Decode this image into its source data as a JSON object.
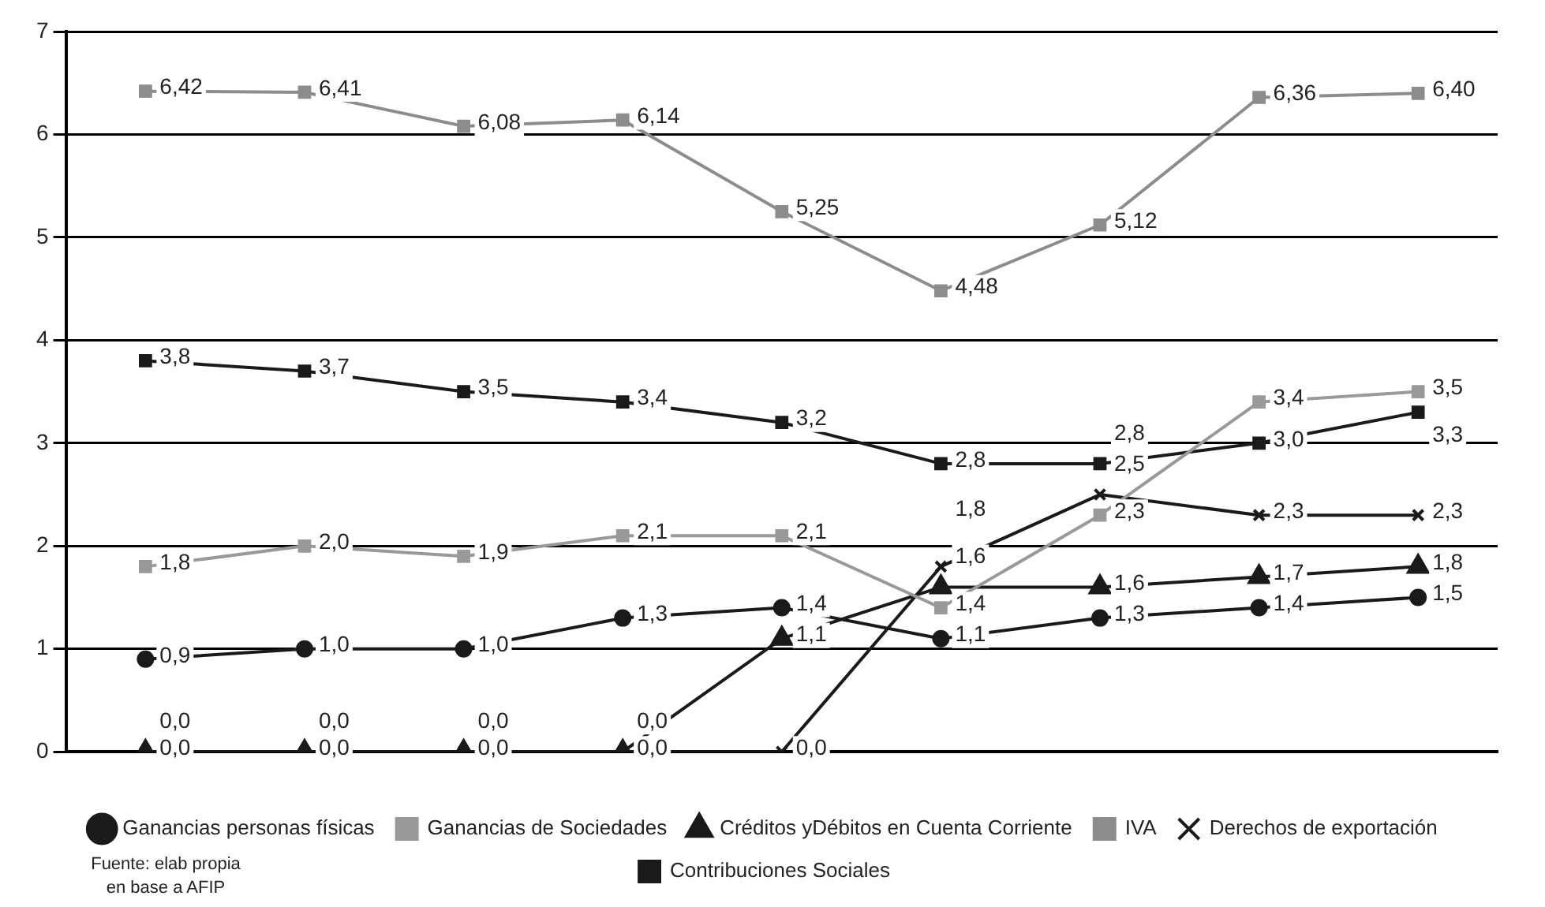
{
  "chart_data": {
    "type": "line",
    "categories": [
      null,
      null,
      null,
      null,
      null,
      null,
      null,
      null,
      null
    ],
    "series": [
      {
        "name": "Ganancias personas físicas",
        "color": "#1a1a1a",
        "marker": "circle",
        "values": [
          0.9,
          1.0,
          1.0,
          1.3,
          1.4,
          1.1,
          1.3,
          1.4,
          1.5
        ],
        "value_labels": [
          "0,9",
          "1,0",
          "1,0",
          "1,3",
          "1,4",
          "1,1",
          "1,3",
          "1,4",
          "1,5"
        ]
      },
      {
        "name": "Ganancias de Sociedades",
        "color": "#999999",
        "marker": "square",
        "values": [
          1.8,
          2.0,
          1.9,
          2.1,
          2.1,
          1.4,
          2.3,
          3.4,
          3.5
        ],
        "value_labels": [
          "1,8",
          "2,0",
          "1,9",
          "2,1",
          "2,1",
          "1,4",
          "2,3",
          "3,4",
          "3,5"
        ]
      },
      {
        "name": "Créditos yDébitos en Cuenta Corriente",
        "color": "#1a1a1a",
        "marker": "triangle",
        "values": [
          0.0,
          0.0,
          0.0,
          0.0,
          1.1,
          1.6,
          1.6,
          1.7,
          1.8
        ],
        "value_labels": [
          "0,0",
          "0,0",
          "0,0",
          "0,0",
          "1,1",
          "1,6",
          "1,6",
          "1,7",
          "1,8"
        ]
      },
      {
        "name": "IVA",
        "color": "#8c8c8c",
        "marker": "square",
        "values": [
          6.42,
          6.41,
          6.08,
          6.14,
          5.25,
          4.48,
          5.12,
          6.36,
          6.4
        ],
        "value_labels": [
          "6,42",
          "6,41",
          "6,08",
          "6,14",
          "5,25",
          "4,48",
          "5,12",
          "6,36",
          "6,40"
        ]
      },
      {
        "name": "Derechos de exportación",
        "color": "#1a1a1a",
        "marker": "cross",
        "values": [
          0.0,
          0.0,
          0.0,
          0.0,
          0.0,
          1.8,
          2.5,
          2.3,
          2.3
        ],
        "value_labels": [
          "0,0",
          "0,0",
          "0,0",
          "0,0",
          "0,0",
          "1,8",
          "2,5",
          "2,3",
          "2,3"
        ]
      },
      {
        "name": "Contribuciones Sociales",
        "color": "#1a1a1a",
        "marker": "square",
        "values": [
          3.8,
          3.7,
          3.5,
          3.4,
          3.2,
          2.8,
          2.8,
          3.0,
          3.3
        ],
        "value_labels": [
          "3,8",
          "3,7",
          "3,5",
          "3,4",
          "3,2",
          "2,8",
          "2,8",
          "3,0",
          "3,3"
        ]
      }
    ],
    "ylim": [
      0,
      7
    ],
    "yticks": [
      0,
      1,
      2,
      3,
      4,
      5,
      6,
      7
    ],
    "grid": "y",
    "legend": "bottom",
    "line_style": "solid",
    "annotations": [
      "Fuente: elab propia\nen base a AFIP"
    ]
  }
}
